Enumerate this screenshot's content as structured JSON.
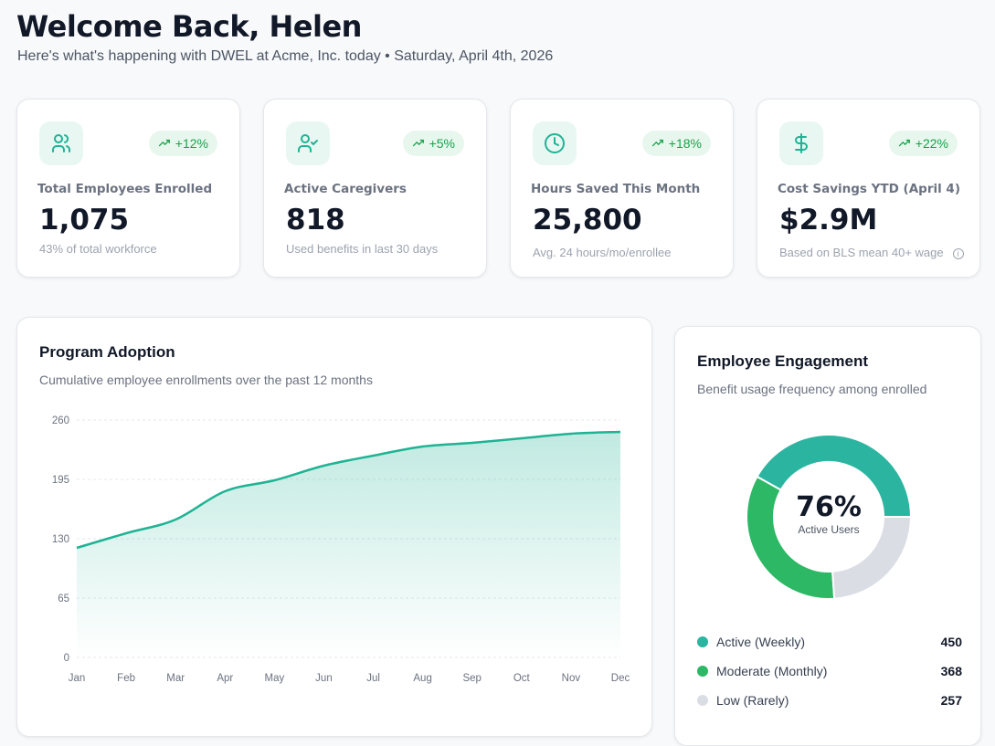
{
  "header": {
    "title": "Welcome Back, Helen",
    "subtitle": "Here's what's happening with DWEL at Acme, Inc. today • Saturday, April 4th, 2026"
  },
  "stats": [
    {
      "icon": "users-icon",
      "change": "+12%",
      "label": "Total Employees Enrolled",
      "value": "1,075",
      "note": "43% of total workforce"
    },
    {
      "icon": "user-check-icon",
      "change": "+5%",
      "label": "Active Caregivers",
      "value": "818",
      "note": "Used benefits in last 30 days"
    },
    {
      "icon": "clock-icon",
      "change": "+18%",
      "label": "Hours Saved This Month",
      "value": "25,800",
      "note": "Avg. 24 hours/mo/enrollee"
    },
    {
      "icon": "dollar-icon",
      "change": "+22%",
      "label": "Cost Savings YTD (April 4)",
      "value": "$2.9M",
      "note": "Based on BLS mean 40+ wage"
    }
  ],
  "colors": {
    "accent": "#1fb394",
    "teal": "#2bb5a0",
    "green": "#2db865",
    "gray": "#dadee4"
  },
  "adoption": {
    "title": "Program Adoption",
    "subtitle": "Cumulative employee enrollments over the past 12 months"
  },
  "engagement": {
    "title": "Employee Engagement",
    "subtitle": "Benefit usage frequency among enrolled",
    "center_value": "76%",
    "center_label": "Active Users"
  },
  "chart_data": [
    {
      "type": "area",
      "categories": [
        "Jan",
        "Feb",
        "Mar",
        "Apr",
        "May",
        "Jun",
        "Jul",
        "Aug",
        "Sep",
        "Oct",
        "Nov",
        "Dec"
      ],
      "values": [
        120,
        136,
        151,
        182,
        194,
        210,
        221,
        231,
        235,
        240,
        245,
        247
      ],
      "yticks": [
        "0",
        "65",
        "130",
        "195",
        "260"
      ],
      "ylim": [
        0,
        260
      ],
      "grid": true
    },
    {
      "type": "pie",
      "categories": [
        "Active (Weekly)",
        "Moderate (Monthly)",
        "Low (Rarely)"
      ],
      "values": [
        450,
        368,
        257
      ],
      "labels": [
        "450",
        "368",
        "257"
      ],
      "colors": [
        "#2bb5a0",
        "#2db865",
        "#dadee4"
      ]
    }
  ]
}
